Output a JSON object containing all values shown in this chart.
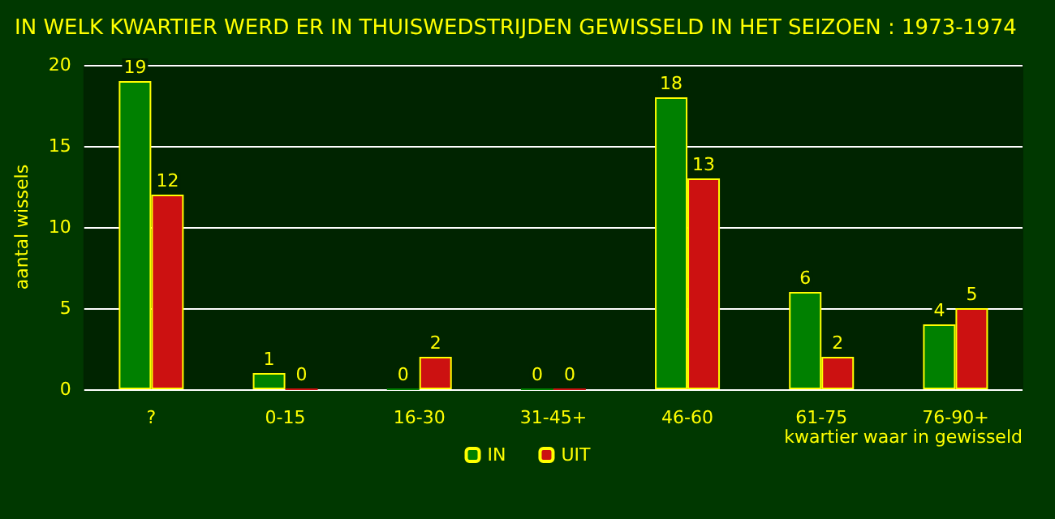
{
  "chart_data": {
    "type": "bar",
    "title": "IN WELK KWARTIER WERD ER IN THUISWEDSTRIJDEN GEWISSELD IN HET SEIZOEN : 1973-1974",
    "xlabel": "kwartier waar in gewisseld",
    "ylabel": "aantal wissels",
    "categories": [
      "?",
      "0-15",
      "16-30",
      "31-45+",
      "46-60",
      "61-75",
      "76-90+"
    ],
    "series": [
      {
        "name": "IN",
        "color": "#008000",
        "values": [
          19,
          1,
          0,
          0,
          18,
          6,
          4
        ]
      },
      {
        "name": "UIT",
        "color": "#cc1111",
        "values": [
          12,
          0,
          2,
          0,
          13,
          2,
          5
        ]
      }
    ],
    "ylim": [
      0,
      20
    ],
    "yticks": [
      0,
      5,
      10,
      15,
      20
    ],
    "grid": "y",
    "legend": "bottom",
    "data_labels": true
  }
}
